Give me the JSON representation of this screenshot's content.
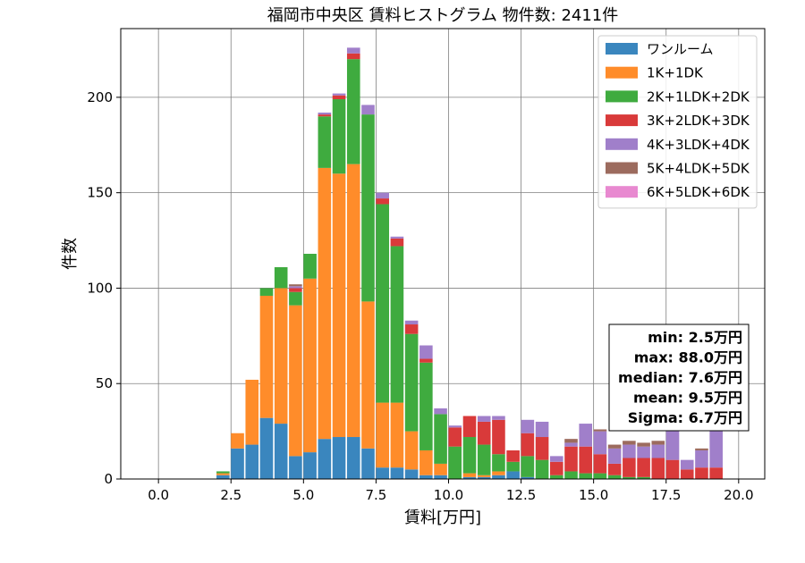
{
  "chart_data": {
    "type": "bar",
    "stacked": true,
    "title": "福岡市中央区 賃料ヒストグラム 物件数: 2411件",
    "xlabel": "賃料[万円]",
    "ylabel": "件数",
    "xlim": [
      -1.3,
      20.9
    ],
    "ylim": [
      0,
      236
    ],
    "xticks": [
      "0.0",
      "2.5",
      "5.0",
      "7.5",
      "10.0",
      "12.5",
      "15.0",
      "17.5",
      "20.0"
    ],
    "xtick_values": [
      0,
      2.5,
      5,
      7.5,
      10,
      12.5,
      15,
      17.5,
      20
    ],
    "yticks": [
      "0",
      "50",
      "100",
      "150",
      "200"
    ],
    "ytick_values": [
      0,
      50,
      100,
      150,
      200
    ],
    "grid": true,
    "legend_position": "top-right",
    "bin_starts": [
      2.0,
      2.5,
      3.0,
      3.5,
      4.0,
      4.5,
      5.0,
      5.5,
      6.0,
      6.5,
      7.0,
      7.5,
      8.0,
      8.5,
      9.0,
      9.5,
      10.0,
      10.5,
      11.0,
      11.5,
      12.0,
      12.5,
      13.0,
      13.5,
      14.0,
      14.5,
      15.0,
      15.5,
      16.0,
      16.5,
      17.0,
      17.5,
      18.0,
      18.5,
      19.0,
      19.5
    ],
    "bin_width": 0.5,
    "series": [
      {
        "name": "ワンルーム",
        "color": "#3a86be",
        "values": [
          2,
          16,
          18,
          32,
          29,
          12,
          14,
          21,
          22,
          22,
          16,
          6,
          6,
          5,
          2,
          2,
          0,
          1,
          1,
          2,
          4,
          1,
          0,
          0,
          0,
          0,
          0,
          0,
          0,
          0,
          0,
          0,
          0,
          0,
          0,
          0
        ]
      },
      {
        "name": "1K+1DK",
        "color": "#ff8c2a",
        "values": [
          1,
          8,
          34,
          64,
          71,
          79,
          91,
          142,
          138,
          143,
          77,
          34,
          34,
          20,
          13,
          6,
          0,
          2,
          1,
          2,
          0,
          0,
          0,
          0,
          0,
          0,
          0,
          0,
          0,
          0,
          0,
          0,
          0,
          0,
          0,
          0
        ]
      },
      {
        "name": "2K+1LDK+2DK",
        "color": "#3fab3f",
        "values": [
          1,
          0,
          0,
          4,
          11,
          7,
          13,
          27,
          39,
          55,
          98,
          104,
          82,
          51,
          46,
          26,
          17,
          19,
          16,
          9,
          5,
          11,
          10,
          2,
          4,
          3,
          3,
          2,
          1,
          1,
          0,
          0,
          0,
          0,
          0,
          0
        ]
      },
      {
        "name": "3K+2LDK+3DK",
        "color": "#d93a3a",
        "values": [
          0,
          0,
          0,
          0,
          0,
          2,
          0,
          1,
          2,
          3,
          0,
          3,
          4,
          5,
          2,
          0,
          10,
          11,
          12,
          18,
          6,
          12,
          12,
          7,
          13,
          14,
          10,
          6,
          10,
          10,
          11,
          10,
          5,
          6,
          6,
          0
        ]
      },
      {
        "name": "4K+3LDK+4DK",
        "color": "#a07fca",
        "values": [
          0,
          0,
          0,
          0,
          0,
          1,
          0,
          1,
          1,
          3,
          5,
          3,
          1,
          2,
          7,
          3,
          1,
          0,
          3,
          2,
          0,
          7,
          8,
          3,
          2,
          12,
          12,
          8,
          7,
          6,
          7,
          26,
          5,
          9,
          22,
          0
        ]
      },
      {
        "name": "5K+4LDK+5DK",
        "color": "#9c6b5e",
        "values": [
          0,
          0,
          0,
          0,
          0,
          1,
          0,
          0,
          0,
          0,
          0,
          0,
          0,
          0,
          0,
          0,
          0,
          0,
          0,
          0,
          0,
          0,
          0,
          0,
          2,
          0,
          1,
          2,
          2,
          2,
          2,
          0,
          0,
          1,
          0,
          0
        ]
      },
      {
        "name": "6K+5LDK+6DK",
        "color": "#e889d0",
        "values": [
          0,
          0,
          0,
          0,
          0,
          0,
          0,
          0,
          0,
          0,
          0,
          0,
          0,
          0,
          0,
          0,
          0,
          0,
          0,
          0,
          0,
          0,
          0,
          0,
          0,
          0,
          0,
          0,
          0,
          0,
          0,
          0,
          0,
          0,
          0,
          0
        ]
      }
    ],
    "stats": [
      "min: 2.5万円",
      "max: 88.0万円",
      "median: 7.6万円",
      "mean: 9.5万円",
      "Sigma: 6.7万円"
    ]
  }
}
